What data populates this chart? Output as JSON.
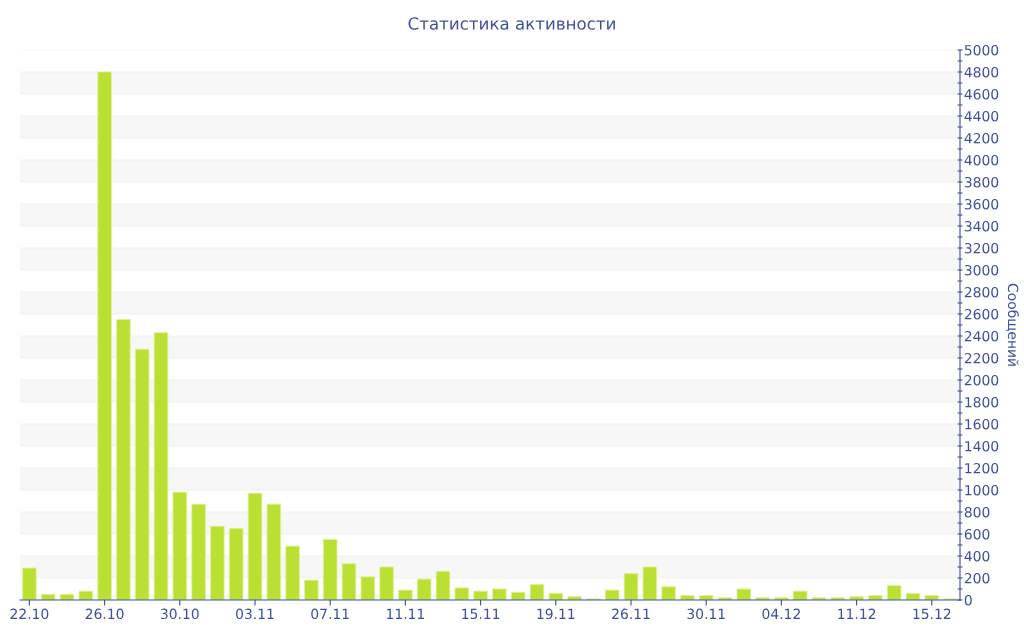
{
  "chart_data": {
    "type": "bar",
    "title": "Статистика активности",
    "ylabel": "Сообщений",
    "categories": [
      "22.10",
      null,
      null,
      null,
      "26.10",
      null,
      null,
      null,
      "30.10",
      null,
      null,
      null,
      "03.11",
      null,
      null,
      null,
      "07.11",
      null,
      null,
      null,
      "11.11",
      null,
      null,
      null,
      "15.11",
      null,
      null,
      null,
      "19.11",
      null,
      null,
      null,
      "26.11",
      null,
      null,
      null,
      "30.11",
      null,
      null,
      null,
      "04.12",
      null,
      null,
      null,
      "11.12",
      null,
      null,
      null,
      "15.12",
      null
    ],
    "values": [
      290,
      50,
      50,
      80,
      4800,
      2550,
      2280,
      2430,
      980,
      870,
      670,
      650,
      970,
      870,
      490,
      180,
      550,
      330,
      210,
      300,
      90,
      190,
      260,
      110,
      80,
      100,
      70,
      140,
      60,
      30,
      10,
      90,
      240,
      300,
      120,
      40,
      40,
      20,
      100,
      20,
      20,
      80,
      20,
      20,
      30,
      40,
      130,
      60,
      40,
      10
    ],
    "color": "#bbe034",
    "ylim": [
      0,
      5000
    ],
    "yticks": [
      0,
      {
        "value": 100,
        "label": null
      },
      200,
      {
        "value": 300,
        "label": null
      },
      400,
      {
        "value": 500,
        "label": null
      },
      600,
      {
        "value": 700,
        "label": null
      },
      800,
      {
        "value": 900,
        "label": null
      },
      1000,
      {
        "value": 1100,
        "label": null
      },
      1200,
      {
        "value": 1300,
        "label": null
      },
      1400,
      {
        "value": 1500,
        "label": null
      },
      1600,
      {
        "value": 1700,
        "label": null
      },
      1800,
      {
        "value": 1900,
        "label": null
      },
      2000,
      {
        "value": 2100,
        "label": null
      },
      2200,
      {
        "value": 2300,
        "label": null
      },
      2400,
      {
        "value": 2500,
        "label": null
      },
      2600,
      {
        "value": 2700,
        "label": null
      },
      2800,
      {
        "value": 2900,
        "label": null
      },
      3000,
      {
        "value": 3100,
        "label": null
      },
      3200,
      {
        "value": 3300,
        "label": null
      },
      3400,
      {
        "value": 3500,
        "label": null
      },
      3600,
      {
        "value": 3700,
        "label": null
      },
      3800,
      {
        "value": 3900,
        "label": null
      },
      4000,
      {
        "value": 4100,
        "label": null
      },
      4200,
      {
        "value": 4300,
        "label": null
      },
      4400,
      {
        "value": 4500,
        "label": null
      },
      4600,
      {
        "value": 4700,
        "label": null
      },
      4800,
      {
        "value": 4900,
        "label": null
      },
      5000
    ],
    "grid": "y"
  }
}
